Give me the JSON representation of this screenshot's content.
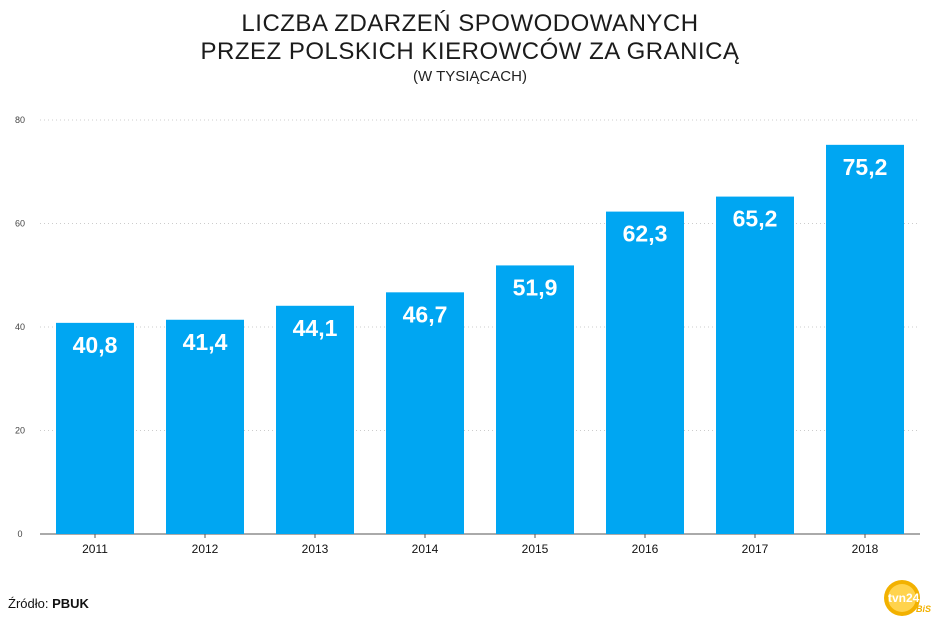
{
  "title": {
    "line1": "LICZBA ZDARZEŃ SPOWODOWANYCH",
    "line2": "PRZEZ POLSKICH KIEROWCÓW ZA GRANICĄ",
    "subtitle": "(W TYSIĄCACH)"
  },
  "source": {
    "label": "Źródło:",
    "value": "PBUK"
  },
  "logo": {
    "text": "tvn24",
    "sub": "BiS"
  },
  "colors": {
    "bar": "#00a6f2",
    "grid": "#cccccc",
    "axis": "#555555",
    "label": "#ffffff"
  },
  "chart_data": {
    "type": "bar",
    "title": "LICZBA ZDARZEŃ SPOWODOWANYCH PRZEZ POLSKICH KIEROWCÓW ZA GRANICĄ",
    "subtitle": "(W TYSIĄCACH)",
    "categories": [
      "2011",
      "2012",
      "2013",
      "2014",
      "2015",
      "2016",
      "2017",
      "2018"
    ],
    "values": [
      40.8,
      41.4,
      44.1,
      46.7,
      51.9,
      62.3,
      65.2,
      75.2
    ],
    "value_labels": [
      "40,8",
      "41,4",
      "44,1",
      "46,7",
      "51,9",
      "62,3",
      "65,2",
      "75,2"
    ],
    "yticks": [
      0,
      20,
      40,
      60,
      80
    ],
    "ylim": [
      0,
      80
    ],
    "xlabel": "",
    "ylabel": "",
    "grid": true,
    "legend": "none"
  }
}
